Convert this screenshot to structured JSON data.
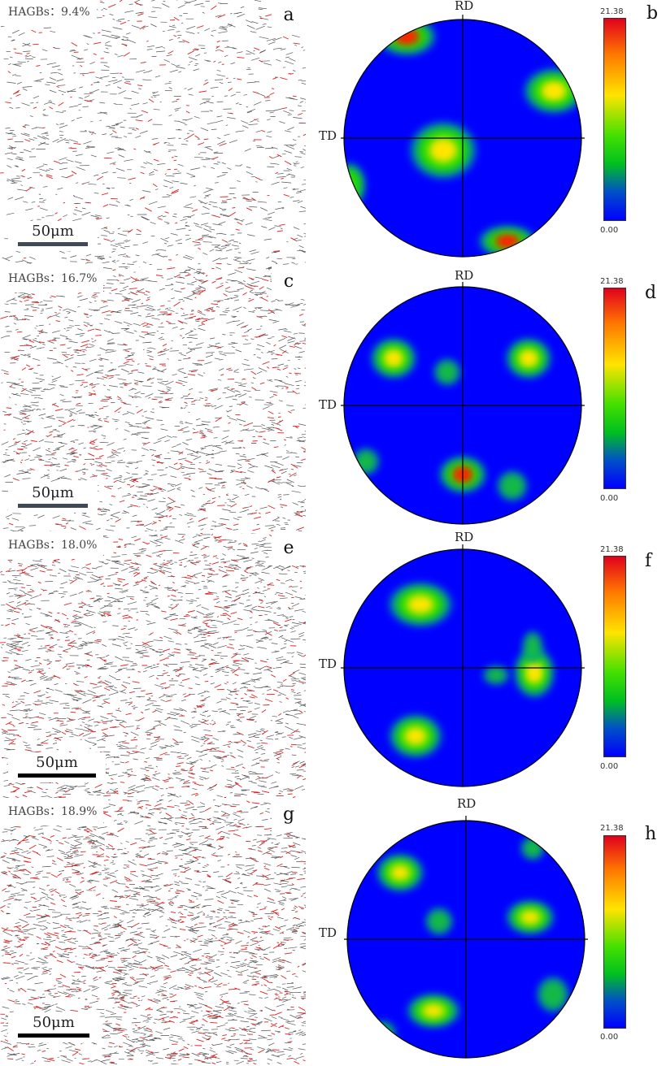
{
  "panels": [
    {
      "micro_letter": "a",
      "hagbs": "HAGBs：9.4%",
      "scale_label": "50μm",
      "scale_bar_color": "#404a56",
      "pf_letter": "b",
      "rd": "RD",
      "td": "TD",
      "cbar_max": "21.38",
      "cbar_min": "0.00"
    },
    {
      "micro_letter": "c",
      "hagbs": "HAGBs：16.7%",
      "scale_label": "50μm",
      "scale_bar_color": "#404a56",
      "pf_letter": "d",
      "rd": "RD",
      "td": "TD",
      "cbar_max": "21.38",
      "cbar_min": "0.00"
    },
    {
      "micro_letter": "e",
      "hagbs": "HAGBs：18.0%",
      "scale_label": "50μm",
      "scale_bar_color": "#000000",
      "pf_letter": "f",
      "rd": "RD",
      "td": "TD",
      "cbar_max": "21.38",
      "cbar_min": "0.00"
    },
    {
      "micro_letter": "g",
      "hagbs": "HAGBs：18.9%",
      "scale_label": "50μm",
      "scale_bar_color": "#000000",
      "pf_letter": "h",
      "rd": "RD",
      "td": "TD",
      "cbar_max": "21.38",
      "cbar_min": "0.00"
    }
  ],
  "colors": {
    "boundary_red": "#e02020",
    "boundary_grey": "#555555",
    "pf_blue": "#0000ff",
    "pf_green": "#22dd00",
    "pf_yellow": "#ffe600",
    "pf_red": "#ff2000"
  }
}
